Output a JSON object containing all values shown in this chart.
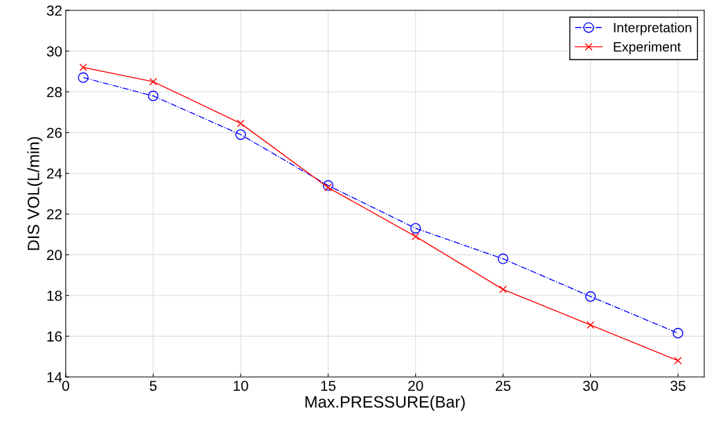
{
  "chart_data": {
    "type": "line",
    "xlabel": "Max.PRESSURE(Bar)",
    "ylabel": "DIS VOL(L/min)",
    "x": [
      1,
      5,
      10,
      15,
      20,
      25,
      30,
      35
    ],
    "series": [
      {
        "name": "Interpretation",
        "color": "#0000ff",
        "values": [
          28.7,
          27.8,
          25.9,
          23.4,
          21.3,
          19.8,
          17.95,
          16.15
        ],
        "marker": "circle",
        "line_style": "dashdot"
      },
      {
        "name": "Experiment",
        "color": "#ff0000",
        "values": [
          29.2,
          28.5,
          26.45,
          23.3,
          20.9,
          18.3,
          16.55,
          14.8
        ],
        "marker": "cross",
        "line_style": "solid"
      }
    ],
    "xlim": [
      0,
      36.5
    ],
    "xticks": [
      0,
      5,
      10,
      15,
      20,
      25,
      30,
      35
    ],
    "ylim": [
      14,
      32
    ],
    "yticks": [
      14,
      16,
      18,
      20,
      22,
      24,
      26,
      28,
      30,
      32
    ],
    "grid": true,
    "legend": "top right"
  }
}
